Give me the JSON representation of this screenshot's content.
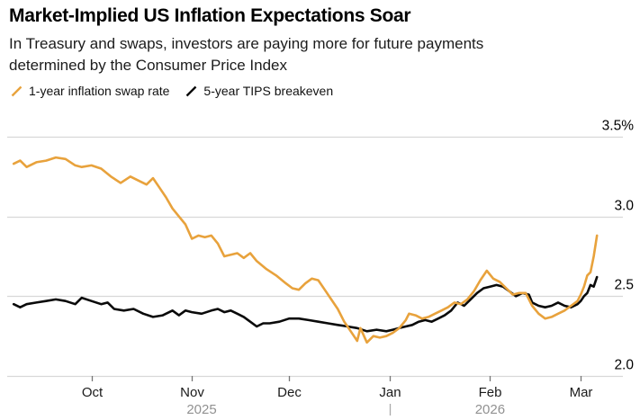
{
  "colors": {
    "background": "#ffffff",
    "grid": "#d8d8d8",
    "tick": "#777777",
    "month_label": "#1a1a1a",
    "year_label": "#919191",
    "y_label": "#000000",
    "year_divider": "#aaaaaa",
    "swap_orange": "#E8A23C",
    "tips_black": "#0a0a0a"
  },
  "chart_data": {
    "type": "line",
    "title": "Market-Implied US Inflation Expectations Soar",
    "subtitle_lines": [
      "In Treasury and swaps, investors are paying more for future payments",
      "determined by the Consumer Price Index"
    ],
    "legend_position": "top-left",
    "grid": true,
    "y_axis": {
      "min": 2.0,
      "max": 3.5,
      "labels_side": "right",
      "ticks": [
        {
          "value": 3.5,
          "label": "3.5%"
        },
        {
          "value": 3.0,
          "label": "3.0"
        },
        {
          "value": 2.5,
          "label": "2.5"
        },
        {
          "value": 2.0,
          "label": "2.0"
        }
      ]
    },
    "x_axis": {
      "start": "2025-09-05",
      "end": "2026-03-14",
      "month_ticks": [
        {
          "date": "2025-10-01",
          "label": "Oct"
        },
        {
          "date": "2025-11-01",
          "label": "Nov"
        },
        {
          "date": "2025-12-01",
          "label": "Dec"
        },
        {
          "date": "2026-01-01",
          "label": "Jan"
        },
        {
          "date": "2026-02-01",
          "label": "Feb"
        },
        {
          "date": "2026-03-01",
          "label": "Mar"
        }
      ],
      "year_labels": [
        {
          "date": "2025-11-04",
          "label": "2025"
        },
        {
          "date": "2026-02-01",
          "label": "2026"
        }
      ],
      "year_divider_date": "2026-01-01"
    },
    "series": [
      {
        "name": "5-year TIPS breakeven",
        "color": "#0a0a0a",
        "points": [
          [
            "2025-09-07",
            2.45
          ],
          [
            "2025-09-09",
            2.43
          ],
          [
            "2025-09-11",
            2.45
          ],
          [
            "2025-09-14",
            2.46
          ],
          [
            "2025-09-17",
            2.47
          ],
          [
            "2025-09-20",
            2.48
          ],
          [
            "2025-09-23",
            2.47
          ],
          [
            "2025-09-26",
            2.45
          ],
          [
            "2025-09-28",
            2.49
          ],
          [
            "2025-10-01",
            2.47
          ],
          [
            "2025-10-04",
            2.45
          ],
          [
            "2025-10-06",
            2.46
          ],
          [
            "2025-10-08",
            2.42
          ],
          [
            "2025-10-11",
            2.41
          ],
          [
            "2025-10-14",
            2.42
          ],
          [
            "2025-10-17",
            2.39
          ],
          [
            "2025-10-20",
            2.37
          ],
          [
            "2025-10-23",
            2.38
          ],
          [
            "2025-10-26",
            2.41
          ],
          [
            "2025-10-28",
            2.38
          ],
          [
            "2025-10-30",
            2.41
          ],
          [
            "2025-11-01",
            2.4
          ],
          [
            "2025-11-04",
            2.39
          ],
          [
            "2025-11-07",
            2.41
          ],
          [
            "2025-11-09",
            2.42
          ],
          [
            "2025-11-11",
            2.4
          ],
          [
            "2025-11-13",
            2.41
          ],
          [
            "2025-11-15",
            2.39
          ],
          [
            "2025-11-17",
            2.37
          ],
          [
            "2025-11-19",
            2.34
          ],
          [
            "2025-11-21",
            2.31
          ],
          [
            "2025-11-23",
            2.33
          ],
          [
            "2025-11-25",
            2.33
          ],
          [
            "2025-11-28",
            2.34
          ],
          [
            "2025-12-01",
            2.36
          ],
          [
            "2025-12-04",
            2.36
          ],
          [
            "2025-12-07",
            2.35
          ],
          [
            "2025-12-10",
            2.34
          ],
          [
            "2025-12-13",
            2.33
          ],
          [
            "2025-12-16",
            2.32
          ],
          [
            "2025-12-19",
            2.31
          ],
          [
            "2025-12-22",
            2.3
          ],
          [
            "2025-12-25",
            2.28
          ],
          [
            "2025-12-28",
            2.29
          ],
          [
            "2025-12-31",
            2.28
          ],
          [
            "2026-01-02",
            2.29
          ],
          [
            "2026-01-04",
            2.3
          ],
          [
            "2026-01-06",
            2.31
          ],
          [
            "2026-01-08",
            2.32
          ],
          [
            "2026-01-10",
            2.34
          ],
          [
            "2026-01-12",
            2.35
          ],
          [
            "2026-01-14",
            2.34
          ],
          [
            "2026-01-16",
            2.36
          ],
          [
            "2026-01-18",
            2.38
          ],
          [
            "2026-01-20",
            2.41
          ],
          [
            "2026-01-22",
            2.46
          ],
          [
            "2026-01-24",
            2.44
          ],
          [
            "2026-01-26",
            2.48
          ],
          [
            "2026-01-28",
            2.52
          ],
          [
            "2026-01-30",
            2.55
          ],
          [
            "2026-02-01",
            2.56
          ],
          [
            "2026-02-03",
            2.57
          ],
          [
            "2026-02-05",
            2.56
          ],
          [
            "2026-02-07",
            2.53
          ],
          [
            "2026-02-09",
            2.5
          ],
          [
            "2026-02-11",
            2.52
          ],
          [
            "2026-02-13",
            2.51
          ],
          [
            "2026-02-14",
            2.46
          ],
          [
            "2026-02-16",
            2.44
          ],
          [
            "2026-02-18",
            2.43
          ],
          [
            "2026-02-20",
            2.44
          ],
          [
            "2026-02-22",
            2.46
          ],
          [
            "2026-02-24",
            2.44
          ],
          [
            "2026-02-26",
            2.43
          ],
          [
            "2026-02-28",
            2.45
          ],
          [
            "2026-03-01",
            2.47
          ],
          [
            "2026-03-02",
            2.5
          ],
          [
            "2026-03-03",
            2.52
          ],
          [
            "2026-03-04",
            2.57
          ],
          [
            "2026-03-05",
            2.56
          ],
          [
            "2026-03-06",
            2.62
          ]
        ]
      },
      {
        "name": "1-year inflation swap rate",
        "color": "#E8A23C",
        "points": [
          [
            "2025-09-07",
            3.33
          ],
          [
            "2025-09-09",
            3.35
          ],
          [
            "2025-09-11",
            3.31
          ],
          [
            "2025-09-14",
            3.34
          ],
          [
            "2025-09-17",
            3.35
          ],
          [
            "2025-09-20",
            3.37
          ],
          [
            "2025-09-23",
            3.36
          ],
          [
            "2025-09-26",
            3.32
          ],
          [
            "2025-09-28",
            3.31
          ],
          [
            "2025-10-01",
            3.32
          ],
          [
            "2025-10-04",
            3.3
          ],
          [
            "2025-10-07",
            3.25
          ],
          [
            "2025-10-10",
            3.21
          ],
          [
            "2025-10-13",
            3.25
          ],
          [
            "2025-10-16",
            3.22
          ],
          [
            "2025-10-18",
            3.2
          ],
          [
            "2025-10-20",
            3.24
          ],
          [
            "2025-10-22",
            3.18
          ],
          [
            "2025-10-24",
            3.12
          ],
          [
            "2025-10-26",
            3.05
          ],
          [
            "2025-10-28",
            3.0
          ],
          [
            "2025-10-30",
            2.95
          ],
          [
            "2025-11-01",
            2.86
          ],
          [
            "2025-11-03",
            2.88
          ],
          [
            "2025-11-05",
            2.87
          ],
          [
            "2025-11-07",
            2.88
          ],
          [
            "2025-11-09",
            2.83
          ],
          [
            "2025-11-11",
            2.75
          ],
          [
            "2025-11-13",
            2.76
          ],
          [
            "2025-11-15",
            2.77
          ],
          [
            "2025-11-17",
            2.74
          ],
          [
            "2025-11-19",
            2.77
          ],
          [
            "2025-11-21",
            2.72
          ],
          [
            "2025-11-24",
            2.67
          ],
          [
            "2025-11-27",
            2.63
          ],
          [
            "2025-11-30",
            2.58
          ],
          [
            "2025-12-02",
            2.55
          ],
          [
            "2025-12-04",
            2.54
          ],
          [
            "2025-12-06",
            2.58
          ],
          [
            "2025-12-08",
            2.61
          ],
          [
            "2025-12-10",
            2.6
          ],
          [
            "2025-12-12",
            2.54
          ],
          [
            "2025-12-14",
            2.48
          ],
          [
            "2025-12-16",
            2.42
          ],
          [
            "2025-12-18",
            2.34
          ],
          [
            "2025-12-20",
            2.28
          ],
          [
            "2025-12-22",
            2.22
          ],
          [
            "2025-12-23",
            2.3
          ],
          [
            "2025-12-25",
            2.21
          ],
          [
            "2025-12-27",
            2.25
          ],
          [
            "2025-12-29",
            2.24
          ],
          [
            "2025-12-31",
            2.25
          ],
          [
            "2026-01-02",
            2.27
          ],
          [
            "2026-01-04",
            2.3
          ],
          [
            "2026-01-06",
            2.35
          ],
          [
            "2026-01-07",
            2.39
          ],
          [
            "2026-01-09",
            2.38
          ],
          [
            "2026-01-11",
            2.36
          ],
          [
            "2026-01-13",
            2.37
          ],
          [
            "2026-01-15",
            2.39
          ],
          [
            "2026-01-17",
            2.41
          ],
          [
            "2026-01-19",
            2.43
          ],
          [
            "2026-01-21",
            2.46
          ],
          [
            "2026-01-23",
            2.45
          ],
          [
            "2026-01-25",
            2.48
          ],
          [
            "2026-01-27",
            2.53
          ],
          [
            "2026-01-29",
            2.6
          ],
          [
            "2026-01-31",
            2.66
          ],
          [
            "2026-02-02",
            2.61
          ],
          [
            "2026-02-04",
            2.59
          ],
          [
            "2026-02-06",
            2.55
          ],
          [
            "2026-02-08",
            2.51
          ],
          [
            "2026-02-10",
            2.52
          ],
          [
            "2026-02-12",
            2.52
          ],
          [
            "2026-02-14",
            2.44
          ],
          [
            "2026-02-16",
            2.39
          ],
          [
            "2026-02-18",
            2.36
          ],
          [
            "2026-02-20",
            2.37
          ],
          [
            "2026-02-22",
            2.39
          ],
          [
            "2026-02-24",
            2.41
          ],
          [
            "2026-02-26",
            2.44
          ],
          [
            "2026-02-28",
            2.47
          ],
          [
            "2026-03-01",
            2.51
          ],
          [
            "2026-03-02",
            2.56
          ],
          [
            "2026-03-03",
            2.63
          ],
          [
            "2026-03-04",
            2.65
          ],
          [
            "2026-03-05",
            2.75
          ],
          [
            "2026-03-06",
            2.88
          ]
        ]
      }
    ]
  }
}
